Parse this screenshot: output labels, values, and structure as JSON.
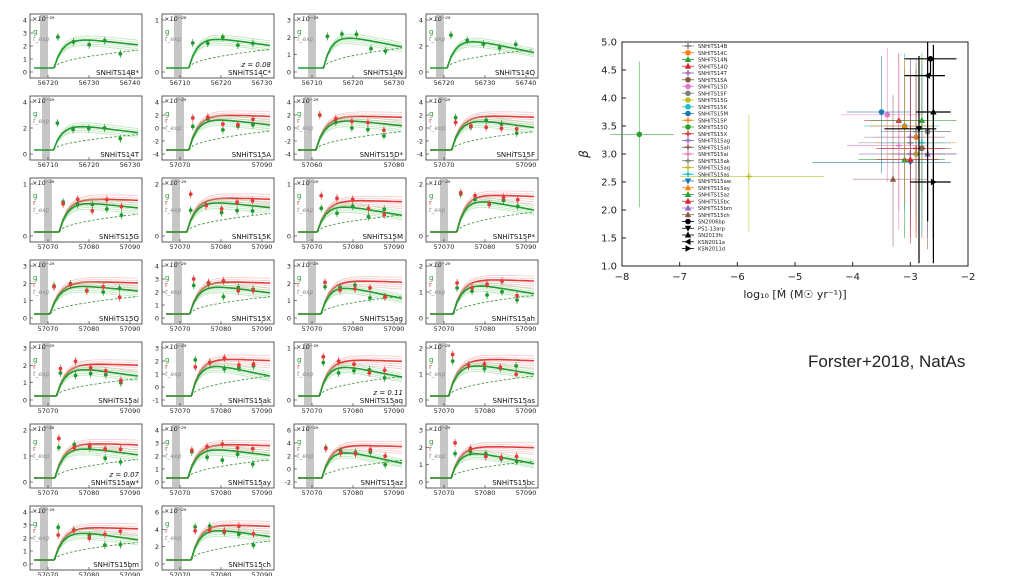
{
  "slide": {
    "credit": "Forster+2018, NatAs"
  },
  "colors": {
    "g_band": "#1f9a2e",
    "r_band": "#e23b3b",
    "texp": "#8c8c8c",
    "model_g": "#8fd68f",
    "model_r": "#f2a3a3",
    "dashed": "#2e8b2e"
  },
  "panels_meta": {
    "legend_g": "g",
    "legend_r": "r",
    "legend_texp": "t_exp"
  },
  "panels": [
    {
      "name": "SNHiTS14B*",
      "exp": "×10⁻²⁹",
      "yticks": [
        "4",
        "3",
        "2",
        "1",
        "0"
      ],
      "xticks": [
        "56720",
        "56730",
        "56740"
      ],
      "bands": [
        "g"
      ],
      "z": ""
    },
    {
      "name": "SNHiTS14C*",
      "exp": "×10⁻²⁸",
      "yticks": [
        "1",
        "0"
      ],
      "xticks": [
        "56710",
        "56720",
        "56730"
      ],
      "bands": [
        "g"
      ],
      "z": "z = 0.08"
    },
    {
      "name": "SNHiTS14N",
      "exp": "×10⁻²⁹",
      "yticks": [
        "3",
        "2",
        "1",
        "0"
      ],
      "xticks": [
        "56710",
        "56720",
        "56730"
      ],
      "bands": [
        "g"
      ],
      "z": ""
    },
    {
      "name": "SNHiTS14Q",
      "exp": "×10⁻²⁹",
      "yticks": [
        "4",
        "2",
        "0"
      ],
      "xticks": [
        "56720",
        "56730",
        "56740"
      ],
      "bands": [
        "g"
      ],
      "z": ""
    },
    {
      "name": "SNHiTS14T",
      "exp": "×10⁻²⁹",
      "yticks": [
        "4",
        "2",
        "0"
      ],
      "xticks": [
        "56710",
        "56720",
        "56730"
      ],
      "bands": [
        "g"
      ],
      "z": ""
    },
    {
      "name": "SNHiTS15A",
      "exp": "×10⁻²⁹",
      "yticks": [
        "4",
        "2",
        "0",
        "-2",
        "-4"
      ],
      "xticks": [
        "57070",
        "57090"
      ],
      "bands": [
        "g",
        "r"
      ],
      "z": ""
    },
    {
      "name": "SNHiTS15D*",
      "exp": "×10⁻²⁹",
      "yticks": [
        "4",
        "2",
        "0",
        "-2",
        "-4"
      ],
      "xticks": [
        "57060",
        "57080"
      ],
      "bands": [
        "g",
        "r"
      ],
      "z": ""
    },
    {
      "name": "SNHiTS15F",
      "exp": "×10⁻²⁹",
      "yticks": [
        "4",
        "2",
        "0",
        "-2",
        "-4"
      ],
      "xticks": [
        "57070",
        "57090"
      ],
      "bands": [
        "g",
        "r"
      ],
      "z": ""
    },
    {
      "name": "SNHiTS15G",
      "exp": "×10⁻²⁹",
      "yticks": [
        "1",
        "0"
      ],
      "xticks": [
        "57070",
        "57080",
        "57090"
      ],
      "bands": [
        "g",
        "r"
      ],
      "z": ""
    },
    {
      "name": "SNHiTS15K",
      "exp": "×10⁻²⁹",
      "yticks": [
        "2",
        "0"
      ],
      "xticks": [
        "57070",
        "57080",
        "57090"
      ],
      "bands": [
        "g",
        "r"
      ],
      "z": ""
    },
    {
      "name": "SNHiTS15M",
      "exp": "×10⁻²⁹",
      "yticks": [
        "1",
        "0"
      ],
      "xticks": [
        "57070",
        "57080",
        "57090"
      ],
      "bands": [
        "g",
        "r"
      ],
      "z": ""
    },
    {
      "name": "SNHiTS15P*",
      "exp": "×10⁻²⁹",
      "yticks": [
        "2",
        "0"
      ],
      "xticks": [
        "57070",
        "57080",
        "57090"
      ],
      "bands": [
        "g",
        "r"
      ],
      "z": ""
    },
    {
      "name": "SNHiTS15Q",
      "exp": "×10⁻²⁹",
      "yticks": [
        "3",
        "2",
        "1",
        "0"
      ],
      "xticks": [
        "57070",
        "57080",
        "57090"
      ],
      "bands": [
        "g",
        "r"
      ],
      "z": ""
    },
    {
      "name": "SNHiTS15X",
      "exp": "×10⁻²⁹",
      "yticks": [
        "4",
        "3",
        "2",
        "1",
        "0"
      ],
      "xticks": [
        "57070",
        "57080",
        "57090"
      ],
      "bands": [
        "g",
        "r"
      ],
      "z": ""
    },
    {
      "name": "SNHiTS15ag",
      "exp": "×10⁻²⁹",
      "yticks": [
        "3",
        "2",
        "1",
        "0"
      ],
      "xticks": [
        "57070",
        "57080",
        "57090"
      ],
      "bands": [
        "g",
        "r"
      ],
      "z": ""
    },
    {
      "name": "SNHiTS15ah",
      "exp": "×10⁻²⁹",
      "yticks": [
        "2",
        "1",
        "0"
      ],
      "xticks": [
        "57070",
        "57080",
        "57090"
      ],
      "bands": [
        "g",
        "r"
      ],
      "z": ""
    },
    {
      "name": "SNHiTS15ai",
      "exp": "×10⁻²⁹",
      "yticks": [
        "3",
        "2",
        "1",
        "0"
      ],
      "xticks": [
        "57070",
        "57090"
      ],
      "bands": [
        "g",
        "r"
      ],
      "z": ""
    },
    {
      "name": "SNHiTS15ak",
      "exp": "×10⁻²⁹",
      "yticks": [
        "3",
        "2",
        "1",
        "0",
        "-1"
      ],
      "xticks": [
        "57070",
        "57080",
        "57090"
      ],
      "bands": [
        "g",
        "r"
      ],
      "z": ""
    },
    {
      "name": "SNHiTS15aq",
      "exp": "×10⁻²⁹",
      "yticks": [
        "1",
        "0"
      ],
      "xticks": [
        "57070",
        "57080",
        "57090"
      ],
      "bands": [
        "g",
        "r"
      ],
      "z": "z = 0.11"
    },
    {
      "name": "SNHiTS15as",
      "exp": "×10⁻²⁹",
      "yticks": [
        "2",
        "1",
        "0"
      ],
      "xticks": [
        "57070",
        "57080",
        "57090"
      ],
      "bands": [
        "g",
        "r"
      ],
      "z": ""
    },
    {
      "name": "SNHiTS15aw*",
      "exp": "×10⁻²⁸",
      "yticks": [
        "2",
        "1",
        "0"
      ],
      "xticks": [
        "57070",
        "57080",
        "57090"
      ],
      "bands": [
        "g",
        "r"
      ],
      "z": "z = 0.07"
    },
    {
      "name": "SNHiTS15ay",
      "exp": "×10⁻²⁹",
      "yticks": [
        "4",
        "3",
        "2",
        "1",
        "0"
      ],
      "xticks": [
        "57070",
        "57080",
        "57090"
      ],
      "bands": [
        "g",
        "r"
      ],
      "z": ""
    },
    {
      "name": "SNHiTS15az",
      "exp": "×10⁻²⁹",
      "yticks": [
        "6",
        "4",
        "2",
        "0",
        "-2"
      ],
      "xticks": [
        "57070",
        "57080",
        "57090"
      ],
      "bands": [
        "g",
        "r"
      ],
      "z": ""
    },
    {
      "name": "SNHiTS15bc",
      "exp": "×10⁻²⁹",
      "yticks": [
        "3",
        "2",
        "1",
        "0"
      ],
      "xticks": [
        "57070",
        "57080",
        "57090"
      ],
      "bands": [
        "g",
        "r"
      ],
      "z": ""
    },
    {
      "name": "SNHiTS15bm",
      "exp": "×10⁻²⁹",
      "yticks": [
        "4",
        "3",
        "2",
        "1",
        "0"
      ],
      "xticks": [
        "57070",
        "57080",
        "57090"
      ],
      "bands": [
        "g",
        "r"
      ],
      "z": ""
    },
    {
      "name": "SNHiTS15ch",
      "exp": "×10⁻²⁹",
      "yticks": [
        "6",
        "4",
        "2",
        "0"
      ],
      "xticks": [
        "57070",
        "57080",
        "57090"
      ],
      "bands": [
        "g",
        "r"
      ],
      "z": ""
    }
  ],
  "chart_data": [
    {
      "type": "scatter",
      "xlabel": "log₁₀ [Ṁ (M☉ yr⁻¹)]",
      "ylabel": "β",
      "xlim": [
        -8,
        -2
      ],
      "ylim": [
        1.0,
        5.0
      ],
      "xticks": [
        "−8",
        "−7",
        "−6",
        "−5",
        "−4",
        "−3",
        "−2"
      ],
      "yticks": [
        "1.0",
        "1.5",
        "2.0",
        "2.5",
        "3.0",
        "3.5",
        "4.0",
        "4.5",
        "5.0"
      ],
      "legend_position": "top-left",
      "series": [
        {
          "name": "SNHiTS14B",
          "color": "#7f7f7f",
          "marker": "plus",
          "x": -3.0,
          "y": 3.2,
          "xerr": [
            0.9,
            0.6
          ],
          "yerr": [
            1.2,
            1.5
          ]
        },
        {
          "name": "SNHiTS14C",
          "color": "#ff7f0e",
          "marker": "circle",
          "x": -2.9,
          "y": 3.3,
          "xerr": [
            0.7,
            0.5
          ],
          "yerr": [
            1.5,
            1.2
          ]
        },
        {
          "name": "SNHiTS14N",
          "color": "#2ca02c",
          "marker": "tri",
          "x": -3.1,
          "y": 2.9,
          "xerr": [
            0.8,
            0.7
          ],
          "yerr": [
            1.4,
            1.6
          ]
        },
        {
          "name": "SNHiTS14Q",
          "color": "#d62728",
          "marker": "tri",
          "x": -3.2,
          "y": 3.6,
          "xerr": [
            0.6,
            0.5
          ],
          "yerr": [
            1.6,
            1.2
          ]
        },
        {
          "name": "SNHiTS14T",
          "color": "#9467bd",
          "marker": "plus",
          "x": -3.0,
          "y": 3.0,
          "xerr": [
            0.9,
            0.6
          ],
          "yerr": [
            1.5,
            1.5
          ]
        },
        {
          "name": "SNHiTS15A",
          "color": "#8c564b",
          "marker": "circle",
          "x": -2.8,
          "y": 3.1,
          "xerr": [
            0.7,
            0.5
          ],
          "yerr": [
            1.6,
            1.4
          ]
        },
        {
          "name": "SNHiTS15D",
          "color": "#e377c2",
          "marker": "circle",
          "x": -3.4,
          "y": 3.7,
          "xerr": [
            0.8,
            0.6
          ],
          "yerr": [
            1.2,
            1.2
          ]
        },
        {
          "name": "SNHiTS15F",
          "color": "#7f7f7f",
          "marker": "circle",
          "x": -2.7,
          "y": 3.4,
          "xerr": [
            0.5,
            0.4
          ],
          "yerr": [
            1.8,
            1.5
          ]
        },
        {
          "name": "SNHiTS15G",
          "color": "#bcbd22",
          "marker": "circle",
          "x": -2.9,
          "y": 3.0,
          "xerr": [
            0.6,
            0.5
          ],
          "yerr": [
            1.4,
            1.6
          ]
        },
        {
          "name": "SNHiTS15K",
          "color": "#17becf",
          "marker": "circle",
          "x": -3.1,
          "y": 3.5,
          "xerr": [
            0.7,
            0.6
          ],
          "yerr": [
            1.5,
            1.3
          ]
        },
        {
          "name": "SNHiTS15M",
          "color": "#1f77b4",
          "marker": "circle",
          "x": -3.5,
          "y": 3.75,
          "xerr": [
            0.6,
            0.5
          ],
          "yerr": [
            1.1,
            1.0
          ]
        },
        {
          "name": "SNHiTS15P",
          "color": "#ff7f0e",
          "marker": "plus",
          "x": -2.8,
          "y": 3.2,
          "xerr": [
            0.8,
            0.6
          ],
          "yerr": [
            1.5,
            1.5
          ]
        },
        {
          "name": "SNHiTS15Q",
          "color": "#2ca02c",
          "marker": "circle",
          "x": -7.7,
          "y": 3.35,
          "xerr": [
            0.5,
            0.6
          ],
          "yerr": [
            1.3,
            1.3
          ]
        },
        {
          "name": "SNHiTS15X",
          "color": "#d62728",
          "marker": "plus",
          "x": -2.9,
          "y": 3.1,
          "xerr": [
            0.7,
            0.5
          ],
          "yerr": [
            1.6,
            1.4
          ]
        },
        {
          "name": "SNHiTS15ag",
          "color": "#9467bd",
          "marker": "plus",
          "x": -3.0,
          "y": 3.3,
          "xerr": [
            0.8,
            0.6
          ],
          "yerr": [
            1.4,
            1.4
          ]
        },
        {
          "name": "SNHiTS15ah",
          "color": "#8c564b",
          "marker": "plus",
          "x": -2.7,
          "y": 3.0,
          "xerr": [
            0.6,
            0.5
          ],
          "yerr": [
            1.7,
            1.5
          ]
        },
        {
          "name": "SNHiTS15ai",
          "color": "#e377c2",
          "marker": "plus",
          "x": -3.2,
          "y": 3.15,
          "xerr": [
            0.9,
            0.5
          ],
          "yerr": [
            1.5,
            1.5
          ]
        },
        {
          "name": "SNHiTS15ak",
          "color": "#7f7f7f",
          "marker": "plus",
          "x": -2.9,
          "y": 3.4,
          "xerr": [
            0.6,
            0.6
          ],
          "yerr": [
            1.5,
            1.3
          ]
        },
        {
          "name": "SNHiTS15aq",
          "color": "#bcbd22",
          "marker": "plus",
          "x": -5.8,
          "y": 2.6,
          "xerr": [
            1.2,
            1.3
          ],
          "yerr": [
            1.0,
            1.1
          ]
        },
        {
          "name": "SNHiTS15as",
          "color": "#17becf",
          "marker": "plus",
          "x": -2.8,
          "y": 3.2,
          "xerr": [
            0.7,
            0.5
          ],
          "yerr": [
            1.6,
            1.4
          ]
        },
        {
          "name": "SNHiTS15aw",
          "color": "#1f77b4",
          "marker": "tri_down",
          "x": -3.0,
          "y": 2.85,
          "xerr": [
            1.7,
            0.7
          ],
          "yerr": [
            1.2,
            1.5
          ]
        },
        {
          "name": "SNHiTS15ay",
          "color": "#ff7f0e",
          "marker": "tri",
          "x": -3.1,
          "y": 3.5,
          "xerr": [
            0.6,
            0.5
          ],
          "yerr": [
            1.4,
            1.2
          ]
        },
        {
          "name": "SNHiTS15az",
          "color": "#2ca02c",
          "marker": "tri",
          "x": -2.8,
          "y": 3.6,
          "xerr": [
            0.9,
            0.6
          ],
          "yerr": [
            1.3,
            1.2
          ]
        },
        {
          "name": "SNHiTS15bc",
          "color": "#d62728",
          "marker": "tri",
          "x": -3.0,
          "y": 2.9,
          "xerr": [
            0.6,
            0.5
          ],
          "yerr": [
            1.5,
            1.5
          ]
        },
        {
          "name": "SNHiTS15bm",
          "color": "#9467bd",
          "marker": "tri",
          "x": -2.7,
          "y": 3.0,
          "xerr": [
            0.7,
            0.5
          ],
          "yerr": [
            1.5,
            1.5
          ]
        },
        {
          "name": "SNHiTS15ch",
          "color": "#8c564b",
          "marker": "tri",
          "x": -3.3,
          "y": 2.55,
          "xerr": [
            0.7,
            0.6
          ],
          "yerr": [
            1.2,
            1.5
          ]
        },
        {
          "name": "SN2006bp",
          "color": "#000000",
          "marker": "circle",
          "x": -2.65,
          "y": 4.7,
          "xerr": [
            0.45,
            0.45
          ],
          "yerr": [
            0.3,
            0.0
          ]
        },
        {
          "name": "PS1-13arp",
          "color": "#000000",
          "marker": "tri_down",
          "x": -2.85,
          "y": 3.45,
          "xerr": [
            0.6,
            0.3
          ],
          "yerr": [
            2.4,
            1.3
          ]
        },
        {
          "name": "SN2013fs",
          "color": "#000000",
          "marker": "tri",
          "x": -2.6,
          "y": 3.75,
          "xerr": [
            0.3,
            0.3
          ],
          "yerr": [
            2.7,
            1.2
          ]
        },
        {
          "name": "KSN2011a",
          "color": "#000000",
          "marker": "tri_left",
          "x": -2.7,
          "y": 4.4,
          "xerr": [
            0.4,
            0.3
          ],
          "yerr": [
            2.6,
            0.6
          ]
        },
        {
          "name": "KSN2011d",
          "color": "#000000",
          "marker": "tri_right",
          "x": -2.6,
          "y": 2.5,
          "xerr": [
            0.4,
            0.3
          ],
          "yerr": [
            1.0,
            2.2
          ]
        }
      ]
    }
  ]
}
